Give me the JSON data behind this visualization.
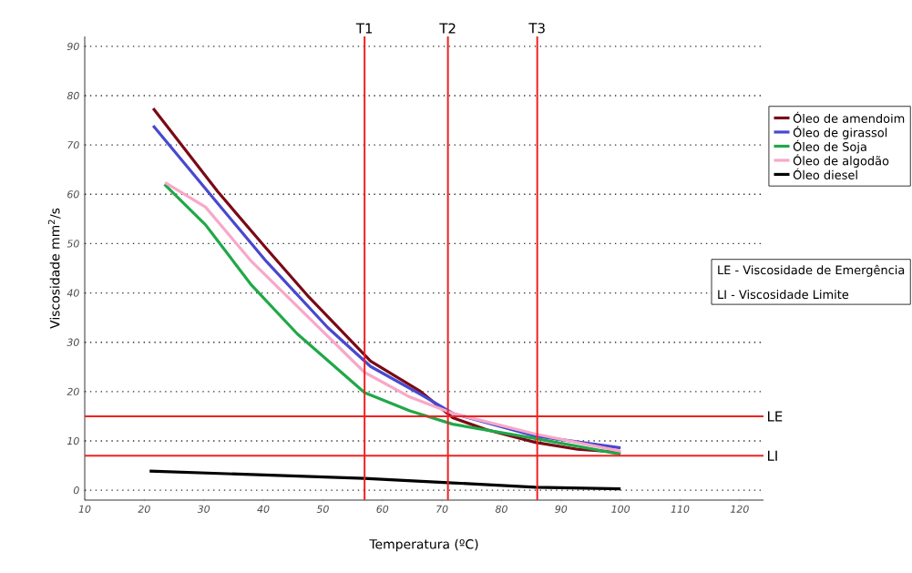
{
  "chart_data": {
    "type": "line",
    "xlabel": "Temperatura (ºC)",
    "ylabel": "Viscosidade mm$^{2}$/s",
    "xlim": [
      10,
      124
    ],
    "ylim": [
      -2,
      92
    ],
    "xticks": [
      10,
      20,
      30,
      40,
      50,
      60,
      70,
      80,
      90,
      100,
      110,
      120
    ],
    "yticks": [
      0,
      10,
      20,
      30,
      40,
      50,
      60,
      70,
      80,
      90
    ],
    "grid": "y",
    "legend": "top right",
    "marker": "none",
    "line_style": "solid",
    "series": [
      {
        "name": "Óleo de amendoim",
        "color": "#7a0a16",
        "x": [
          21.5,
          32.3,
          40.5,
          47.7,
          58,
          66.2,
          71.8,
          77.4,
          85.7,
          92.8,
          100
        ],
        "values": [
          77.4,
          60.6,
          49,
          39.1,
          26.2,
          20.2,
          14.7,
          12.3,
          9.7,
          8.3,
          7.7
        ]
      },
      {
        "name": "Óleo de girassol",
        "color": "#4848d0",
        "x": [
          21.5,
          32.3,
          40.5,
          50.8,
          58,
          66.2,
          71.8,
          85.7,
          100
        ],
        "values": [
          73.9,
          58.2,
          46.4,
          33,
          25.1,
          19.6,
          15.6,
          11,
          8.6
        ]
      },
      {
        "name": "Óleo de Soja",
        "color": "#20a848",
        "x": [
          23.4,
          30.3,
          38,
          45.7,
          57,
          64.6,
          71.8,
          85.7,
          100
        ],
        "values": [
          62,
          53.8,
          41.6,
          31.7,
          19.8,
          16.1,
          13.4,
          10.5,
          7.3
        ]
      },
      {
        "name": "Óleo de algodão",
        "color": "#f8a8c8",
        "x": [
          23.5,
          30.3,
          38,
          48.2,
          57,
          64.6,
          71.8,
          85.7,
          100
        ],
        "values": [
          62.4,
          57.4,
          46.4,
          34.3,
          23.9,
          18.9,
          15.6,
          11.4,
          7.9
        ]
      },
      {
        "name": "Óleo diesel",
        "color": "#000000",
        "x": [
          20.9,
          56.9,
          71.8,
          85.7,
          100
        ],
        "values": [
          3.9,
          2.4,
          1.5,
          0.6,
          0.3
        ]
      }
    ],
    "ref_lines": [
      {
        "axis": "x",
        "value": 57,
        "label": "T1",
        "color": "#ee2222"
      },
      {
        "axis": "x",
        "value": 71,
        "label": "T2",
        "color": "#ee2222"
      },
      {
        "axis": "x",
        "value": 86,
        "label": "T3",
        "color": "#ee2222"
      },
      {
        "axis": "y",
        "value": 15,
        "label": "LE",
        "color": "#ee2222"
      },
      {
        "axis": "y",
        "value": 7,
        "label": "LI",
        "color": "#ee2222"
      }
    ],
    "annotations": [
      "LE - Viscosidade de Emergência",
      "LI - Viscosidade Limite"
    ]
  }
}
